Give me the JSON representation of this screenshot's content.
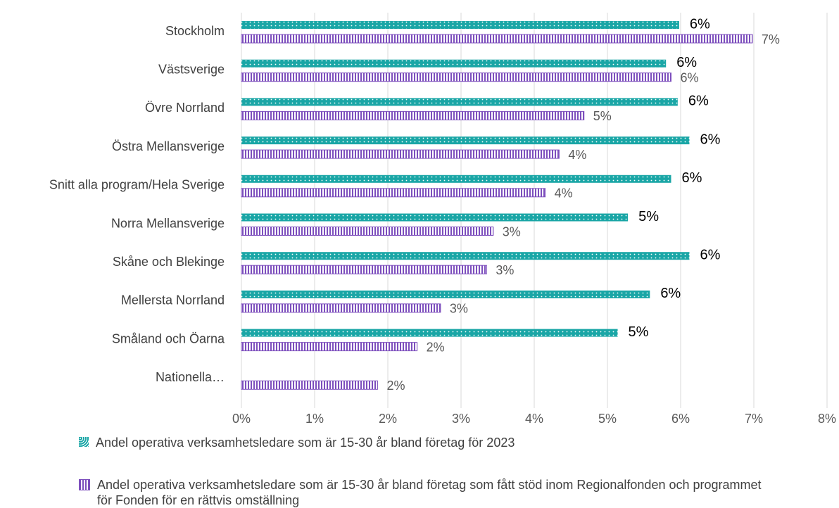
{
  "chart_data": {
    "type": "bar",
    "orientation": "horizontal",
    "categories": [
      "Stockholm",
      "Västsverige",
      "Övre Norrland",
      "Östra Mellansverige",
      "Snitt alla program/Hela Sverige",
      "Norra Mellansverige",
      "Skåne och Blekinge",
      "Mellersta Norrland",
      "Småland och Öarna",
      "Nationella…"
    ],
    "series": [
      {
        "name": "Andel operativa verksamhetsledare som är 15-30 år bland företag för 2023",
        "color": "#1aa6a6",
        "values": [
          5.98,
          5.8,
          5.96,
          6.12,
          5.87,
          5.28,
          6.12,
          5.58,
          5.14,
          null
        ],
        "value_labels": [
          "6%",
          "6%",
          "6%",
          "6%",
          "6%",
          "5%",
          "6%",
          "6%",
          "5%",
          null
        ]
      },
      {
        "name": "Andel operativa verksamhetsledare som är 15-30 år bland företag som fått stöd inom Regionalfonden och programmet för Fonden för en rättvis omställning",
        "color": "#7d4fbd",
        "values": [
          6.98,
          5.87,
          4.68,
          4.34,
          4.15,
          3.44,
          3.35,
          2.72,
          2.4,
          1.86
        ],
        "value_labels": [
          "7%",
          "6%",
          "5%",
          "4%",
          "4%",
          "3%",
          "3%",
          "3%",
          "2%",
          "2%"
        ]
      }
    ],
    "xlim": [
      0,
      8
    ],
    "xticks": [
      {
        "value": 0,
        "label": "0%"
      },
      {
        "value": 1,
        "label": "1%"
      },
      {
        "value": 2,
        "label": "2%"
      },
      {
        "value": 3,
        "label": "3%"
      },
      {
        "value": 4,
        "label": "4%"
      },
      {
        "value": 5,
        "label": "5%"
      },
      {
        "value": 6,
        "label": "6%"
      },
      {
        "value": 7,
        "label": "7%"
      },
      {
        "value": 8,
        "label": "8%"
      }
    ],
    "grid": true
  }
}
